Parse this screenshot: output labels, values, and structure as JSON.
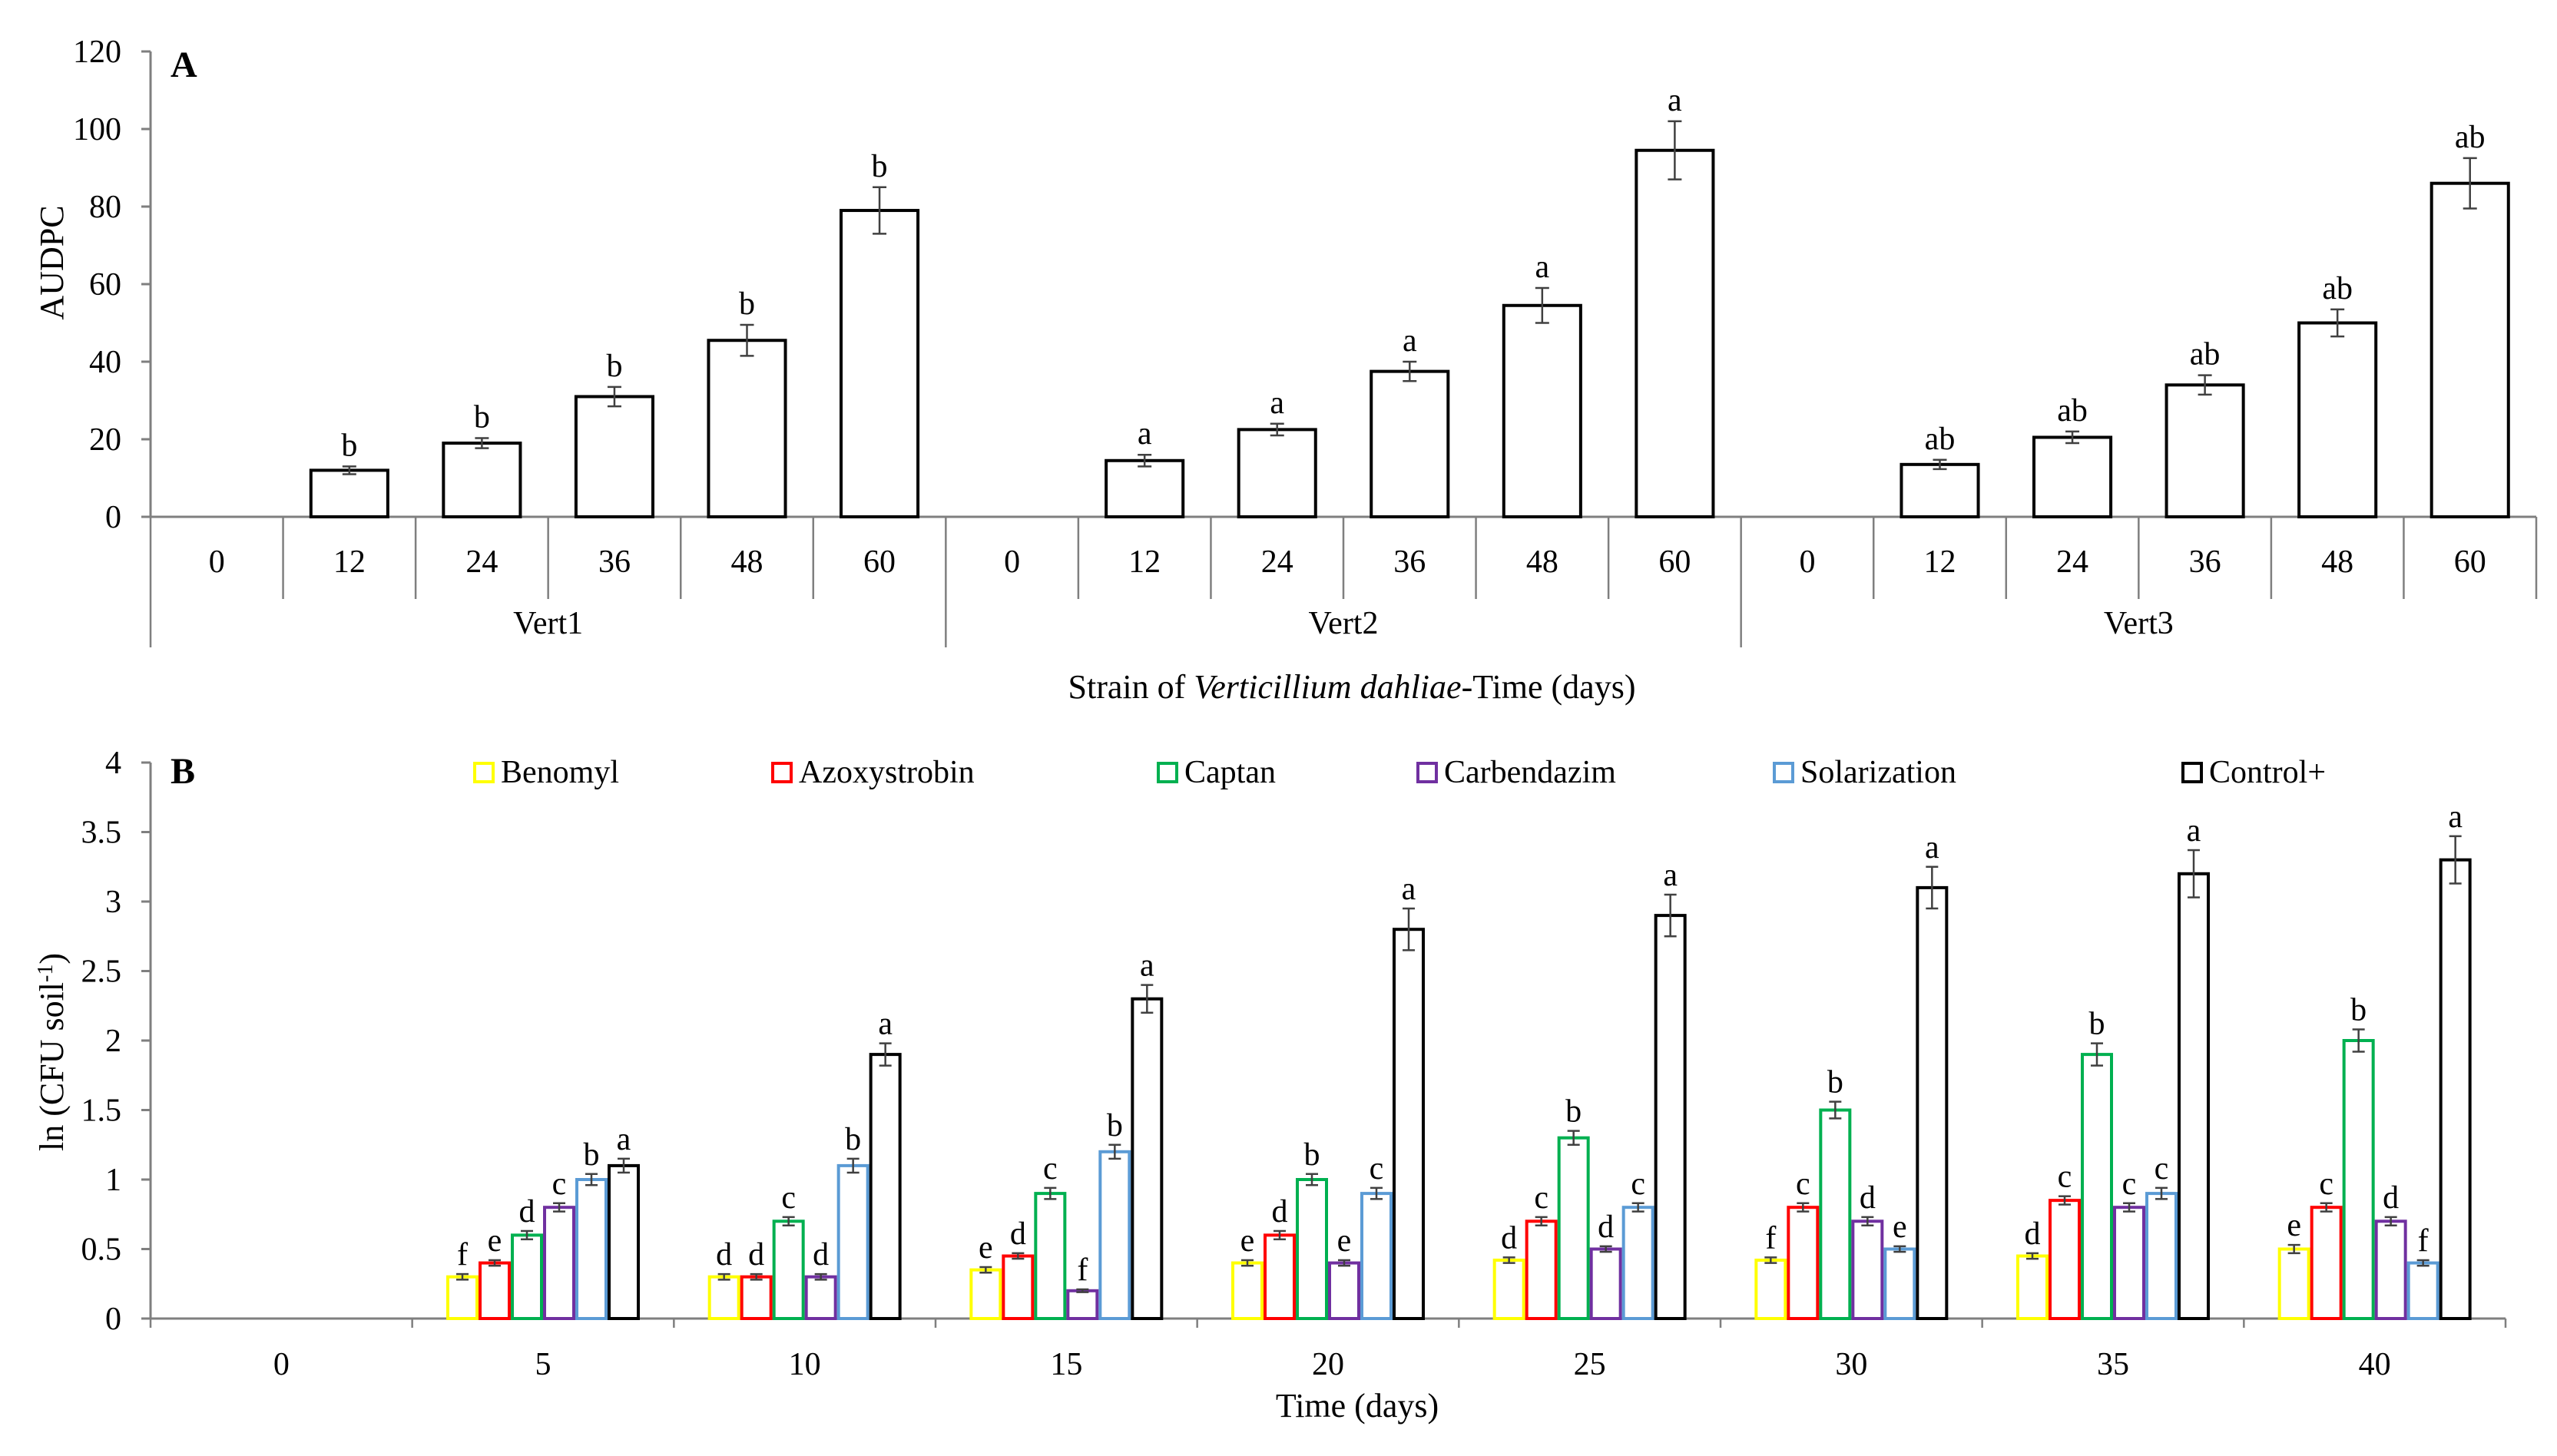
{
  "chart_data": [
    {
      "type": "bar",
      "panel": "A",
      "ylabel": "AUDPC",
      "xlabel_parts": [
        "Strain of ",
        "Verticillium dahliae",
        "-Time (days)"
      ],
      "ylim": [
        0,
        120
      ],
      "yticks": [
        "0",
        "20",
        "40",
        "60",
        "80",
        "100",
        "120"
      ],
      "groups": [
        {
          "name": "Vert1",
          "times": [
            "0",
            "12",
            "24",
            "36",
            "48",
            "60"
          ],
          "values": [
            0,
            12,
            19,
            31,
            45.5,
            79
          ],
          "errors": [
            0,
            1,
            1.3,
            2.5,
            4,
            6
          ],
          "letters": [
            "",
            "b",
            "b",
            "b",
            "b",
            "b"
          ]
        },
        {
          "name": "Vert2",
          "times": [
            "0",
            "12",
            "24",
            "36",
            "48",
            "60"
          ],
          "values": [
            0,
            14.5,
            22.5,
            37.5,
            54.5,
            94.5
          ],
          "errors": [
            0,
            1.5,
            1.5,
            2.5,
            4.5,
            7.5
          ],
          "letters": [
            "",
            "a",
            "a",
            "a",
            "a",
            "a"
          ]
        },
        {
          "name": "Vert3",
          "times": [
            "0",
            "12",
            "24",
            "36",
            "48",
            "60"
          ],
          "values": [
            0,
            13.5,
            20.5,
            34,
            50,
            86
          ],
          "errors": [
            0,
            1.2,
            1.5,
            2.5,
            3.5,
            6.5
          ],
          "letters": [
            "",
            "ab",
            "ab",
            "ab",
            "ab",
            "ab"
          ]
        }
      ]
    },
    {
      "type": "bar",
      "panel": "B",
      "ylabel": "ln (CFU soil",
      "ylabel_sup": "-1",
      "ylabel_end": ")",
      "xlabel": "Time (days)",
      "ylim": [
        0,
        4
      ],
      "yticks": [
        "0",
        "0.5",
        "1",
        "1.5",
        "2",
        "2.5",
        "3",
        "3.5",
        "4"
      ],
      "categories": [
        "0",
        "5",
        "10",
        "15",
        "20",
        "25",
        "30",
        "35",
        "40"
      ],
      "series": [
        {
          "name": "Benomyl",
          "color": "#ffff00",
          "values": [
            null,
            0.3,
            0.3,
            0.35,
            0.4,
            0.42,
            0.42,
            0.45,
            0.5
          ],
          "errors": [
            null,
            0.02,
            0.02,
            0.02,
            0.02,
            0.02,
            0.02,
            0.02,
            0.03
          ],
          "letters": [
            "",
            "f",
            "d",
            "e",
            "e",
            "d",
            "f",
            "d",
            "e"
          ]
        },
        {
          "name": "Azoxystrobin",
          "color": "#ff0000",
          "values": [
            null,
            0.4,
            0.3,
            0.45,
            0.6,
            0.7,
            0.8,
            0.85,
            0.8
          ],
          "errors": [
            null,
            0.02,
            0.02,
            0.02,
            0.03,
            0.03,
            0.03,
            0.03,
            0.03
          ],
          "letters": [
            "",
            "e",
            "d",
            "d",
            "d",
            "c",
            "c",
            "c",
            "c"
          ]
        },
        {
          "name": "Captan",
          "color": "#00b050",
          "values": [
            null,
            0.6,
            0.7,
            0.9,
            1.0,
            1.3,
            1.5,
            1.9,
            2.0
          ],
          "errors": [
            null,
            0.03,
            0.03,
            0.04,
            0.04,
            0.05,
            0.06,
            0.08,
            0.08
          ],
          "letters": [
            "",
            "d",
            "c",
            "c",
            "b",
            "b",
            "b",
            "b",
            "b"
          ]
        },
        {
          "name": "Carbendazim",
          "color": "#7030a0",
          "values": [
            null,
            0.8,
            0.3,
            0.2,
            0.4,
            0.5,
            0.7,
            0.8,
            0.7
          ],
          "errors": [
            null,
            0.03,
            0.02,
            0.01,
            0.02,
            0.02,
            0.03,
            0.03,
            0.03
          ],
          "letters": [
            "",
            "c",
            "d",
            "f",
            "e",
            "d",
            "d",
            "c",
            "d"
          ]
        },
        {
          "name": "Solarization",
          "color": "#5b9bd5",
          "values": [
            null,
            1.0,
            1.1,
            1.2,
            0.9,
            0.8,
            0.5,
            0.9,
            0.4
          ],
          "errors": [
            null,
            0.04,
            0.05,
            0.05,
            0.04,
            0.03,
            0.02,
            0.04,
            0.02
          ],
          "letters": [
            "",
            "b",
            "b",
            "b",
            "c",
            "c",
            "e",
            "c",
            "f"
          ]
        },
        {
          "name": "Control+",
          "color": "#000000",
          "values": [
            null,
            1.1,
            1.9,
            2.3,
            2.8,
            2.9,
            3.1,
            3.2,
            3.3
          ],
          "errors": [
            null,
            0.05,
            0.08,
            0.1,
            0.15,
            0.15,
            0.15,
            0.17,
            0.17
          ],
          "letters": [
            "",
            "a",
            "a",
            "a",
            "a",
            "a",
            "a",
            "a",
            "a"
          ]
        }
      ]
    }
  ]
}
